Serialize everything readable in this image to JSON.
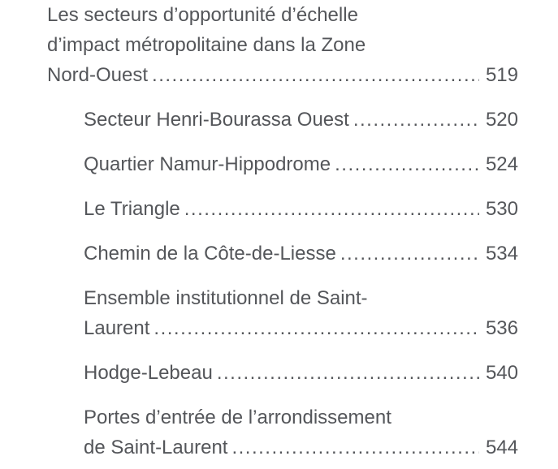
{
  "page": {
    "background_color": "#FFFFFF",
    "text_color": "#54565A"
  },
  "toc": {
    "section": {
      "title": "Les secteurs d’opportunité d’échelle d’impact métropolitaine dans la Zone Nord-Ouest",
      "page": "519"
    },
    "entries": [
      {
        "title": "Secteur Henri-Bourassa Ouest",
        "page": "520"
      },
      {
        "title": "Quartier Namur-Hippodrome",
        "page": "524"
      },
      {
        "title": "Le Triangle",
        "page": "530"
      },
      {
        "title": "Chemin de la Côte-de-Liesse",
        "page": "534"
      },
      {
        "title": "Ensemble institutionnel de Saint-Laurent",
        "page": "536"
      },
      {
        "title": "Hodge-Lebeau",
        "page": "540"
      },
      {
        "title": "Portes d’entrée de l’arrondissement de Saint-Laurent",
        "page": "544"
      }
    ]
  }
}
